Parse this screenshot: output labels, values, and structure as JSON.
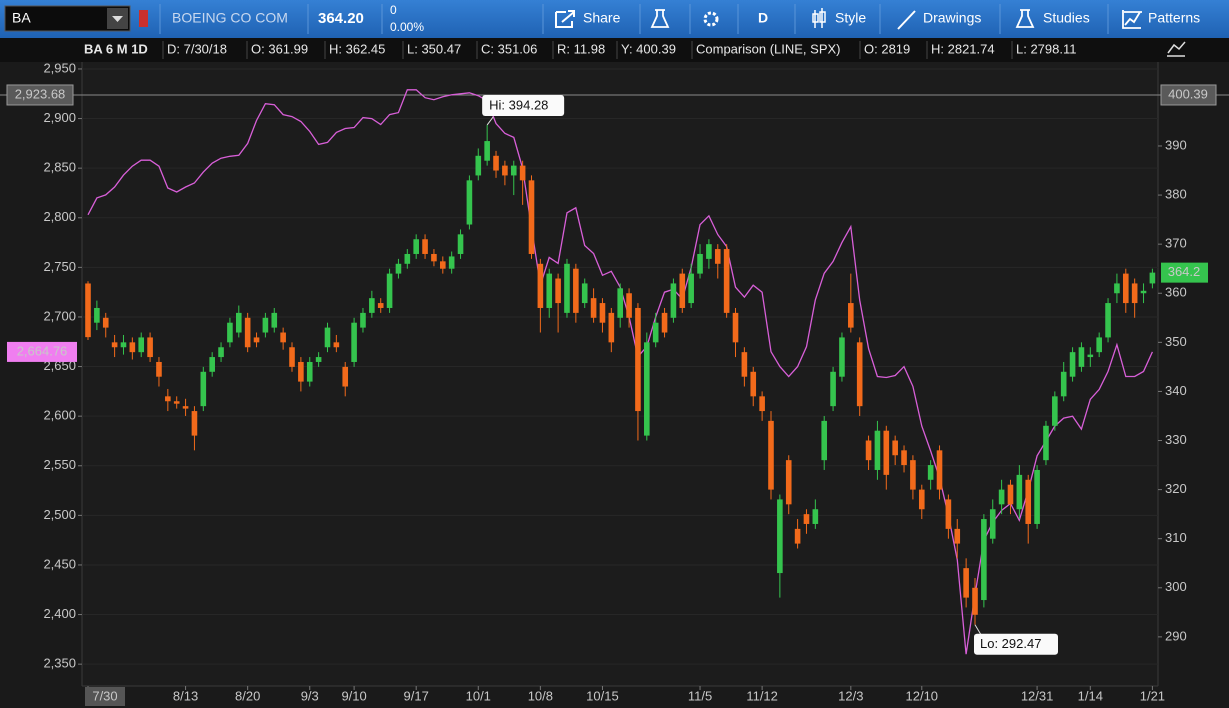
{
  "toolbar": {
    "symbol": "BA",
    "description": "BOEING CO COM",
    "last": "364.20",
    "change": "0",
    "change_pct": "0.00%",
    "buttons": [
      "Share",
      "D",
      "Style",
      "Drawings",
      "Studies",
      "Patterns"
    ]
  },
  "info_bar": {
    "chart_label": "BA 6 M 1D",
    "fields": [
      "D: 7/30/18",
      "O: 361.99",
      "H: 362.45",
      "L: 350.47",
      "C: 351.06",
      "R: 11.98",
      "Y: 400.39"
    ],
    "comparison": "Comparison (LINE, SPX)",
    "comparison_fields": [
      "O: 2819",
      "H: 2821.74",
      "L: 2798.11"
    ]
  },
  "chart_data": {
    "type": "candlestick",
    "categories": [
      "7/30",
      null,
      null,
      null,
      null,
      null,
      null,
      null,
      null,
      null,
      null,
      "8/13",
      null,
      null,
      null,
      null,
      null,
      null,
      "8/20",
      null,
      null,
      null,
      null,
      null,
      null,
      "9/3",
      null,
      null,
      null,
      null,
      "9/10",
      null,
      null,
      null,
      null,
      null,
      null,
      "9/17",
      null,
      null,
      null,
      null,
      null,
      null,
      "10/1",
      null,
      null,
      null,
      null,
      null,
      null,
      "10/8",
      null,
      null,
      null,
      null,
      null,
      null,
      "10/15",
      null,
      null,
      null,
      null,
      null,
      null,
      null,
      null,
      null,
      null,
      "11/5",
      null,
      null,
      null,
      null,
      null,
      null,
      "11/12",
      null,
      null,
      null,
      null,
      null,
      null,
      null,
      null,
      null,
      "12/3",
      null,
      null,
      null,
      null,
      null,
      null,
      null,
      "12/10",
      null,
      null,
      null,
      null,
      null,
      null,
      null,
      null,
      null,
      null,
      null,
      null,
      "12/31",
      null,
      null,
      null,
      null,
      null,
      "1/14",
      null,
      null,
      null,
      null,
      null,
      null,
      "1/21"
    ],
    "open": [
      361.99,
      354,
      355,
      350,
      349,
      350,
      348,
      351,
      346,
      339,
      338,
      337,
      336,
      337,
      344,
      347,
      350,
      352,
      355,
      351,
      352,
      353,
      352,
      349,
      346,
      342,
      346,
      349,
      350,
      345,
      346,
      353,
      356,
      358,
      357,
      364,
      366,
      368,
      371,
      368,
      366.5,
      365,
      368,
      374,
      384,
      387,
      388,
      386,
      384,
      386,
      383,
      366,
      357,
      363,
      356,
      365,
      358,
      359,
      358,
      356,
      355,
      360,
      357,
      331,
      350,
      356,
      355,
      364,
      358,
      364,
      367,
      369,
      369,
      356,
      348,
      344,
      339,
      334,
      303,
      326,
      312,
      315,
      313,
      326,
      337,
      343,
      358,
      350,
      330,
      324,
      332,
      330,
      328,
      326,
      320,
      322,
      328,
      318,
      312,
      304,
      300,
      297.5,
      310,
      317,
      321,
      316,
      322,
      313,
      326,
      333,
      339,
      343,
      345,
      347,
      348,
      351,
      360,
      364,
      362,
      360,
      362
    ],
    "high": [
      362.45,
      358.5,
      356,
      351.5,
      351.5,
      351,
      352,
      352,
      347,
      340.5,
      339,
      338.5,
      337,
      345,
      348,
      350,
      355,
      357.5,
      356,
      352,
      356,
      357,
      353,
      350,
      347,
      347,
      348,
      354,
      351.5,
      346,
      355,
      357,
      360.5,
      359,
      365,
      367,
      369,
      372,
      372,
      369,
      367.5,
      368.5,
      373,
      384,
      389.5,
      394.28,
      389,
      387,
      387,
      387,
      384,
      367,
      365,
      364,
      367,
      366,
      363,
      361,
      359,
      357,
      362,
      361,
      358,
      352,
      356,
      357,
      363,
      365,
      366,
      370,
      371,
      370,
      370,
      357,
      349,
      345,
      340,
      336,
      319,
      327,
      314,
      316,
      318,
      335,
      345,
      352,
      364,
      351,
      331,
      334,
      333,
      331,
      329,
      327,
      321,
      326,
      329,
      319,
      314,
      306,
      302,
      315,
      318,
      322,
      322,
      325,
      323,
      325,
      334,
      340,
      346,
      349,
      350,
      349,
      352,
      359,
      364,
      365,
      363,
      362,
      365
    ],
    "low": [
      350.47,
      352.5,
      351,
      347,
      347.5,
      346.5,
      347,
      346,
      341,
      336,
      336.5,
      335,
      328,
      336,
      343,
      346,
      349,
      351,
      348,
      349,
      351,
      352,
      348.5,
      344,
      340,
      341,
      345,
      348,
      348,
      339,
      345,
      352,
      355,
      356,
      356,
      363,
      365,
      367,
      367,
      365.5,
      364,
      364,
      367,
      373,
      383,
      386,
      383.5,
      382,
      380,
      378,
      367,
      352,
      355,
      352,
      355,
      354,
      357,
      354,
      352,
      348,
      353,
      353,
      330,
      330,
      349,
      351,
      354,
      356,
      357,
      363,
      365,
      363,
      355,
      347,
      341,
      337,
      334,
      318,
      298,
      315,
      308,
      311,
      312,
      324,
      336,
      342,
      352,
      335,
      324,
      322,
      320,
      325,
      323.5,
      318,
      314,
      320,
      318,
      310,
      306,
      296,
      292.47,
      296,
      309,
      315,
      315,
      314,
      309,
      312,
      325,
      332,
      338,
      342,
      344,
      345,
      347,
      350,
      358,
      356,
      355,
      358,
      361
    ],
    "close": [
      351.06,
      357,
      353,
      349,
      350,
      348,
      351,
      347,
      343,
      338,
      337.5,
      336.5,
      331,
      344,
      347,
      349,
      354,
      356,
      349,
      350,
      355,
      356,
      350,
      345,
      342,
      346,
      347,
      353,
      349,
      341,
      354,
      356,
      359,
      357,
      364,
      366,
      368,
      371,
      368,
      366.5,
      365,
      367.5,
      372,
      383,
      388,
      391,
      385,
      384,
      386,
      383,
      368,
      357,
      364,
      358,
      366,
      356,
      362,
      355,
      354,
      350,
      361,
      355,
      336,
      350,
      354,
      352,
      362,
      357,
      364,
      368,
      370,
      366,
      356,
      350,
      343,
      339,
      336,
      320,
      318,
      317,
      309,
      313,
      316,
      334,
      344,
      351,
      353,
      337,
      326,
      332,
      323,
      327,
      325,
      320,
      316,
      325,
      320,
      312,
      309,
      298,
      294.5,
      314,
      316,
      320,
      317,
      323,
      313,
      324,
      333,
      339,
      344,
      348,
      349,
      347.5,
      351,
      358,
      362,
      358,
      358,
      360.5,
      364.2
    ],
    "up_color": "#35c44e",
    "down_color": "#f26a1b",
    "ylim": [
      280.4,
      406.7
    ],
    "yticks": [
      290,
      300,
      310,
      320,
      330,
      340,
      350,
      360,
      370,
      380,
      390
    ],
    "y2lim": [
      2330,
      2955
    ],
    "y2ticks": [
      {
        "value": 2350,
        "label": "2,350"
      },
      {
        "value": 2400,
        "label": "2,400"
      },
      {
        "value": 2450,
        "label": "2,450"
      },
      {
        "value": 2500,
        "label": "2,500"
      },
      {
        "value": 2550,
        "label": "2,550"
      },
      {
        "value": 2600,
        "label": "2,600"
      },
      {
        "value": 2650,
        "label": "2,650"
      },
      {
        "value": 2700,
        "label": "2,700"
      },
      {
        "value": 2750,
        "label": "2,750"
      },
      {
        "value": 2800,
        "label": "2,800"
      },
      {
        "value": 2850,
        "label": "2,850"
      },
      {
        "value": 2900,
        "label": "2,900"
      },
      {
        "value": 2950,
        "label": "2,950"
      }
    ],
    "grid": true,
    "comparison": {
      "axis": "y2",
      "color": "#d85fd8",
      "values": [
        2803,
        2820,
        2823,
        2831,
        2843,
        2852,
        2858,
        2858,
        2852,
        2830,
        2826,
        2831,
        2835,
        2846,
        2855,
        2860,
        2862,
        2863,
        2875,
        2898,
        2915,
        2914,
        2904,
        2902,
        2897,
        2887,
        2874,
        2876,
        2886,
        2890,
        2891,
        2901,
        2900,
        2894,
        2904,
        2906,
        2929,
        2929,
        2921,
        2919,
        2922,
        2924,
        2925,
        2926,
        2923,
        2918,
        2895,
        2885,
        2881,
        2850,
        2790,
        2732,
        2760,
        2754,
        2805,
        2810,
        2772,
        2764,
        2742,
        2746,
        2730,
        2700,
        2660,
        2670,
        2700,
        2725,
        2728,
        2718,
        2750,
        2793,
        2802,
        2783,
        2771,
        2730,
        2720,
        2732,
        2725,
        2665,
        2650,
        2640,
        2650,
        2670,
        2717,
        2744,
        2756,
        2775,
        2791,
        2717,
        2668,
        2640,
        2639,
        2641,
        2650,
        2630,
        2590,
        2565,
        2538,
        2500,
        2455,
        2360,
        2420,
        2475,
        2493,
        2505,
        2512,
        2495,
        2525,
        2560,
        2575,
        2590,
        2598,
        2600,
        2587,
        2617,
        2627,
        2645,
        2672,
        2640,
        2640,
        2645,
        2664.76
      ],
      "last_label": "2,664.76"
    },
    "reference_line": {
      "value": 400.39,
      "y2_label": "2,923.68"
    },
    "hi_label": "Hi: 394.28",
    "lo_label": "Lo: 292.47"
  }
}
